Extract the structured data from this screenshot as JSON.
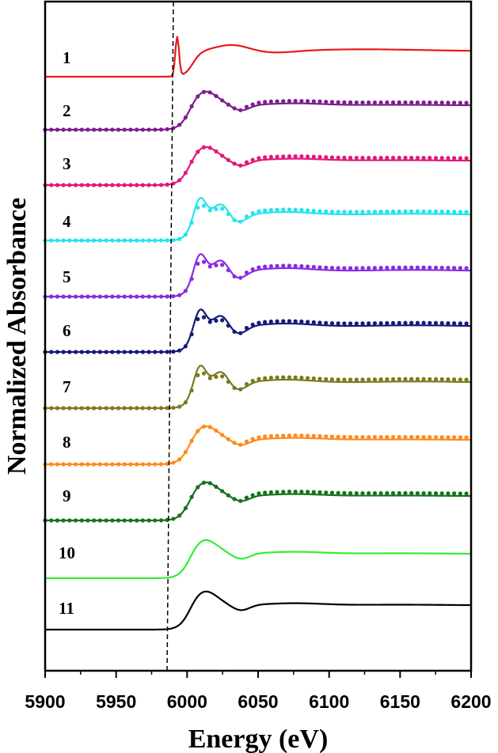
{
  "chart_data": {
    "type": "line",
    "xlabel": "Energy (eV)",
    "ylabel": "Normalized Absorbance",
    "xlim": [
      5900,
      6200
    ],
    "xticks": [
      "5900",
      "5950",
      "6000",
      "6050",
      "6100",
      "6150",
      "6200"
    ],
    "y_ticks_shown": false,
    "grid": false,
    "legend": "none",
    "reference_line": {
      "x": 5987,
      "style": "dashed",
      "color": "#000000"
    },
    "spectra": [
      {
        "label": "1",
        "color": "#e8191e",
        "dotted": false,
        "profile": "preedge"
      },
      {
        "label": "2",
        "color": "#7b1f8c",
        "dotted": true,
        "profile": "broad"
      },
      {
        "label": "3",
        "color": "#e0197a",
        "dotted": true,
        "profile": "broad"
      },
      {
        "label": "4",
        "color": "#22e5ee",
        "dotted": true,
        "profile": "double"
      },
      {
        "label": "5",
        "color": "#8a2be2",
        "dotted": true,
        "profile": "double"
      },
      {
        "label": "6",
        "color": "#141a78",
        "dotted": true,
        "profile": "double"
      },
      {
        "label": "7",
        "color": "#7b7a1e",
        "dotted": true,
        "profile": "double"
      },
      {
        "label": "8",
        "color": "#ff8a1c",
        "dotted": true,
        "profile": "broad"
      },
      {
        "label": "9",
        "color": "#17721d",
        "dotted": true,
        "profile": "broad"
      },
      {
        "label": "10",
        "color": "#33ee33",
        "dotted": false,
        "profile": "broad"
      },
      {
        "label": "11",
        "color": "#000000",
        "dotted": false,
        "profile": "broad"
      }
    ]
  }
}
